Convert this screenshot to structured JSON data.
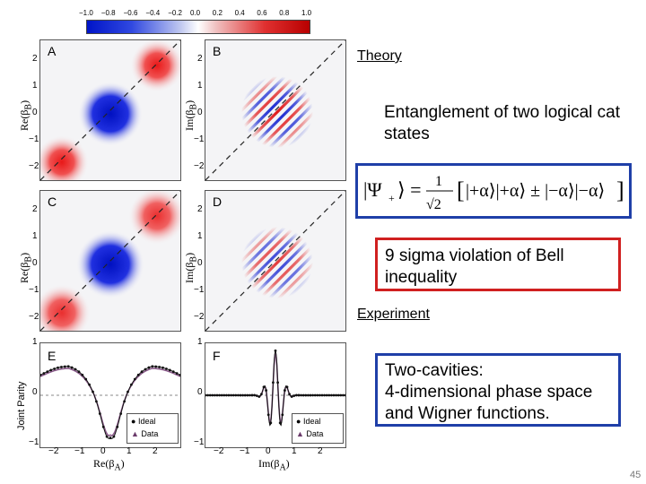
{
  "colorbar": {
    "ticks": [
      "−1.0",
      "−0.8",
      "−0.6",
      "−0.4",
      "−0.2",
      "0.0",
      "0.2",
      "0.4",
      "0.6",
      "0.8",
      "1.0"
    ]
  },
  "panels": {
    "a": "A",
    "b": "B",
    "c": "C",
    "d": "D",
    "e": "E",
    "f": "F"
  },
  "axes": {
    "ylabel_re": "Re(β",
    "ylabel_im": "Im(β",
    "sub_b": "B",
    "sub_a": "A",
    "xlabel_re": "Re(β",
    "xlabel_im": "Im(β",
    "close": ")",
    "joint_parity": "Joint Parity",
    "yticks_map": [
      "2",
      "1",
      "0",
      "−1",
      "−2"
    ],
    "yticks_parity": [
      "1",
      "0",
      "−1"
    ],
    "xticks": [
      "−2",
      "−1",
      "0",
      "1",
      "2"
    ]
  },
  "legend": {
    "ideal": "Ideal",
    "data": "Data"
  },
  "right": {
    "theory": "Theory",
    "entanglement": "Entanglement of two logical cat states",
    "bell": "9 sigma violation of Bell inequality",
    "experiment": "Experiment",
    "twocav_1": "Two-cavities:",
    "twocav_2": "4-dimensional phase space",
    "twocav_3": "and Wigner functions."
  },
  "page_number": "45",
  "colors": {
    "red": "#e02020",
    "blue": "#1030d0",
    "box_blue": "#1f3fa8",
    "box_red": "#d02020"
  }
}
